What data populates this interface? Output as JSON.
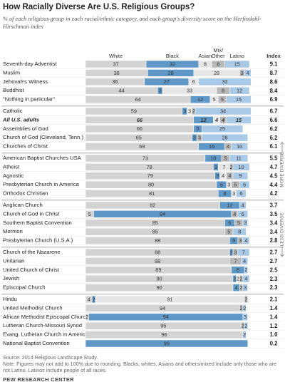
{
  "chart_data": {
    "type": "bar",
    "orientation": "horizontal",
    "stacked": true,
    "title": "How Racially Diverse Are U.S. Religious Groups?",
    "subtitle": "% of each religious group in each racial/ethnic category, and each group's diversity score on the Herfindahl-Hirschman index",
    "categories": [
      "Seventh-day Adventist",
      "Muslim",
      "Jehovah's Witness",
      "Buddhist",
      "\"Nothing in particular\"",
      "Catholic",
      "All U.S. adults",
      "Assemblies of God",
      "Church of God (Cleveland, Tenn.)",
      "Churches of Christ",
      "American Baptist Churches USA",
      "Atheist",
      "Agnostic",
      "Presbyterian Church in America",
      "Orthodox Christian",
      "Anglican Church",
      "Church of God in Christ",
      "Southern Baptist Convention",
      "Mormon",
      "Presbyterian Church (U.S.A.)",
      "Church of the Nazarene",
      "Unitarian",
      "United Church of Christ",
      "Jewish",
      "Episcopal Church",
      "Hindu",
      "United Methodist Church",
      "African Methodist Episcopal Church",
      "Lutheran Church-Missouri Synod",
      "Evang. Lutheran Church in America",
      "National Baptist Convention"
    ],
    "xlim": [
      0,
      100
    ],
    "series": [
      {
        "name": "White",
        "color": "#d3d3d3",
        "values": [
          37,
          38,
          36,
          44,
          64,
          59,
          66,
          66,
          65,
          69,
          73,
          78,
          79,
          80,
          81,
          82,
          5,
          85,
          85,
          88,
          88,
          88,
          89,
          90,
          90,
          4,
          94,
          2,
          95,
          96,
          null
        ]
      },
      {
        "name": "Black",
        "color": "#5f97c6",
        "values": [
          32,
          28,
          27,
          3,
          12,
          3,
          12,
          5,
          3,
          16,
          10,
          3,
          3,
          6,
          8,
          12,
          84,
          6,
          null,
          5,
          2,
          null,
          8,
          2,
          4,
          2,
          null,
          94,
          null,
          null,
          99
        ]
      },
      {
        "name": "Asian",
        "color": "#e6e6e6",
        "values": [
          8,
          28,
          6,
          33,
          5,
          3,
          4,
          null,
          null,
          null,
          null,
          7,
          4,
          3,
          3,
          null,
          null,
          null,
          null,
          null,
          null,
          null,
          null,
          2,
          null,
          91,
          null,
          null,
          null,
          null,
          null
        ]
      },
      {
        "name": "Mix/ Other",
        "color": "#b8b8b8",
        "values": [
          8,
          3,
          null,
          8,
          5,
          2,
          4,
          null,
          3,
          4,
          5,
          2,
          4,
          5,
          null,
          null,
          4,
          5,
          5,
          3,
          3,
          7,
          null,
          2,
          2,
          2,
          2,
          null,
          2,
          null,
          null
        ]
      },
      {
        "name": "Latino",
        "color": "#a9c9e6",
        "values": [
          15,
          4,
          32,
          12,
          15,
          34,
          15,
          25,
          28,
          10,
          11,
          10,
          9,
          6,
          6,
          4,
          6,
          3,
          8,
          4,
          7,
          4,
          2,
          4,
          3,
          null,
          2,
          3,
          2,
          2,
          null
        ]
      }
    ],
    "index": {
      "name": "Index",
      "values": [
        "9.1",
        "8.7",
        "8.6",
        "8.4",
        "6.9",
        "6.7",
        "6.6",
        "6.2",
        "6.2",
        "6.1",
        "5.5",
        "4.7",
        "4.5",
        "4.4",
        "4.2",
        "3.7",
        "3.5",
        "3.4",
        "3.4",
        "2.8",
        "2.7",
        "2.7",
        "2.5",
        "2.3",
        "2.3",
        "2.1",
        "1.4",
        "1.4",
        "1.2",
        "1.0",
        "0.2"
      ]
    },
    "annotations": [
      "MORE DIVERSE",
      "LESS DIVERSE"
    ],
    "source": "Source: 2014 Religious Landscape Study.",
    "note": "Note: Figures may not add to 100% due to rounding. Blacks, whites, Asians and others/mixed include only those who are not Latino. Latinos include people of all races.",
    "credit": "PEW RESEARCH CENTER"
  }
}
